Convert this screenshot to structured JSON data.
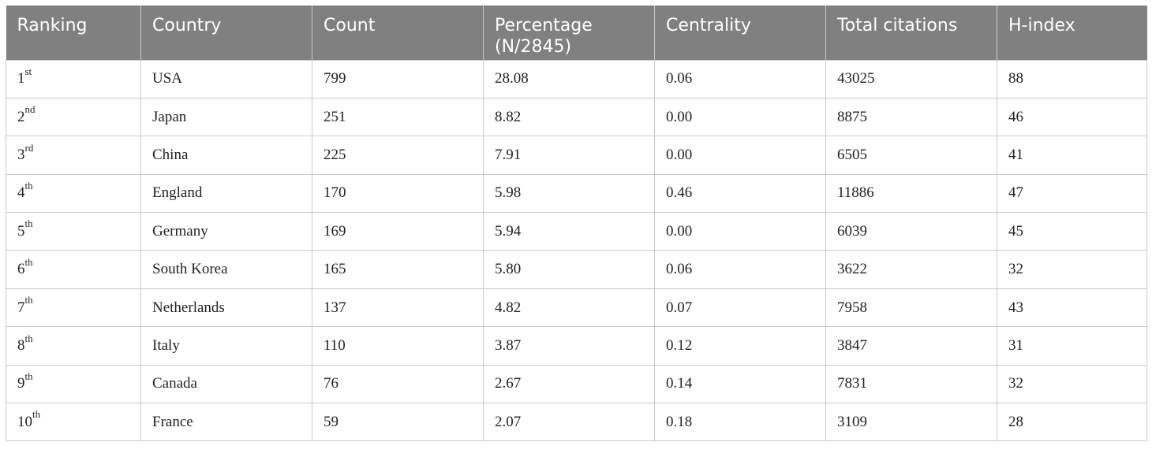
{
  "table": {
    "headers": [
      "Ranking",
      "Country",
      "Count",
      "Percentage (N/2845)",
      "Centrality",
      "Total citations",
      "H-index"
    ],
    "rows": [
      {
        "rank_num": "1",
        "rank_suffix": "st",
        "country": "USA",
        "count": "799",
        "percentage": "28.08",
        "centrality": "0.06",
        "total_citations": "43025",
        "h_index": "88"
      },
      {
        "rank_num": "2",
        "rank_suffix": "nd",
        "country": "Japan",
        "count": "251",
        "percentage": "8.82",
        "centrality": "0.00",
        "total_citations": "8875",
        "h_index": "46"
      },
      {
        "rank_num": "3",
        "rank_suffix": "rd",
        "country": "China",
        "count": "225",
        "percentage": "7.91",
        "centrality": "0.00",
        "total_citations": "6505",
        "h_index": "41"
      },
      {
        "rank_num": "4",
        "rank_suffix": "th",
        "country": "England",
        "count": "170",
        "percentage": "5.98",
        "centrality": "0.46",
        "total_citations": "11886",
        "h_index": "47"
      },
      {
        "rank_num": "5",
        "rank_suffix": "th",
        "country": "Germany",
        "count": "169",
        "percentage": "5.94",
        "centrality": "0.00",
        "total_citations": "6039",
        "h_index": "45"
      },
      {
        "rank_num": "6",
        "rank_suffix": "th",
        "country": "South Korea",
        "count": "165",
        "percentage": "5.80",
        "centrality": "0.06",
        "total_citations": "3622",
        "h_index": "32"
      },
      {
        "rank_num": "7",
        "rank_suffix": "th",
        "country": "Netherlands",
        "count": "137",
        "percentage": "4.82",
        "centrality": "0.07",
        "total_citations": "7958",
        "h_index": "43"
      },
      {
        "rank_num": "8",
        "rank_suffix": "th",
        "country": "Italy",
        "count": "110",
        "percentage": "3.87",
        "centrality": "0.12",
        "total_citations": "3847",
        "h_index": "31"
      },
      {
        "rank_num": "9",
        "rank_suffix": "th",
        "country": "Canada",
        "count": "76",
        "percentage": "2.67",
        "centrality": "0.14",
        "total_citations": "7831",
        "h_index": "32"
      },
      {
        "rank_num": "10",
        "rank_suffix": "th",
        "country": "France",
        "count": "59",
        "percentage": "2.07",
        "centrality": "0.18",
        "total_citations": "3109",
        "h_index": "28"
      }
    ]
  },
  "colors": {
    "header_background": "#808080",
    "header_text": "#ffffff",
    "grid_line": "#c8c8c8",
    "body_text": "#222222"
  }
}
